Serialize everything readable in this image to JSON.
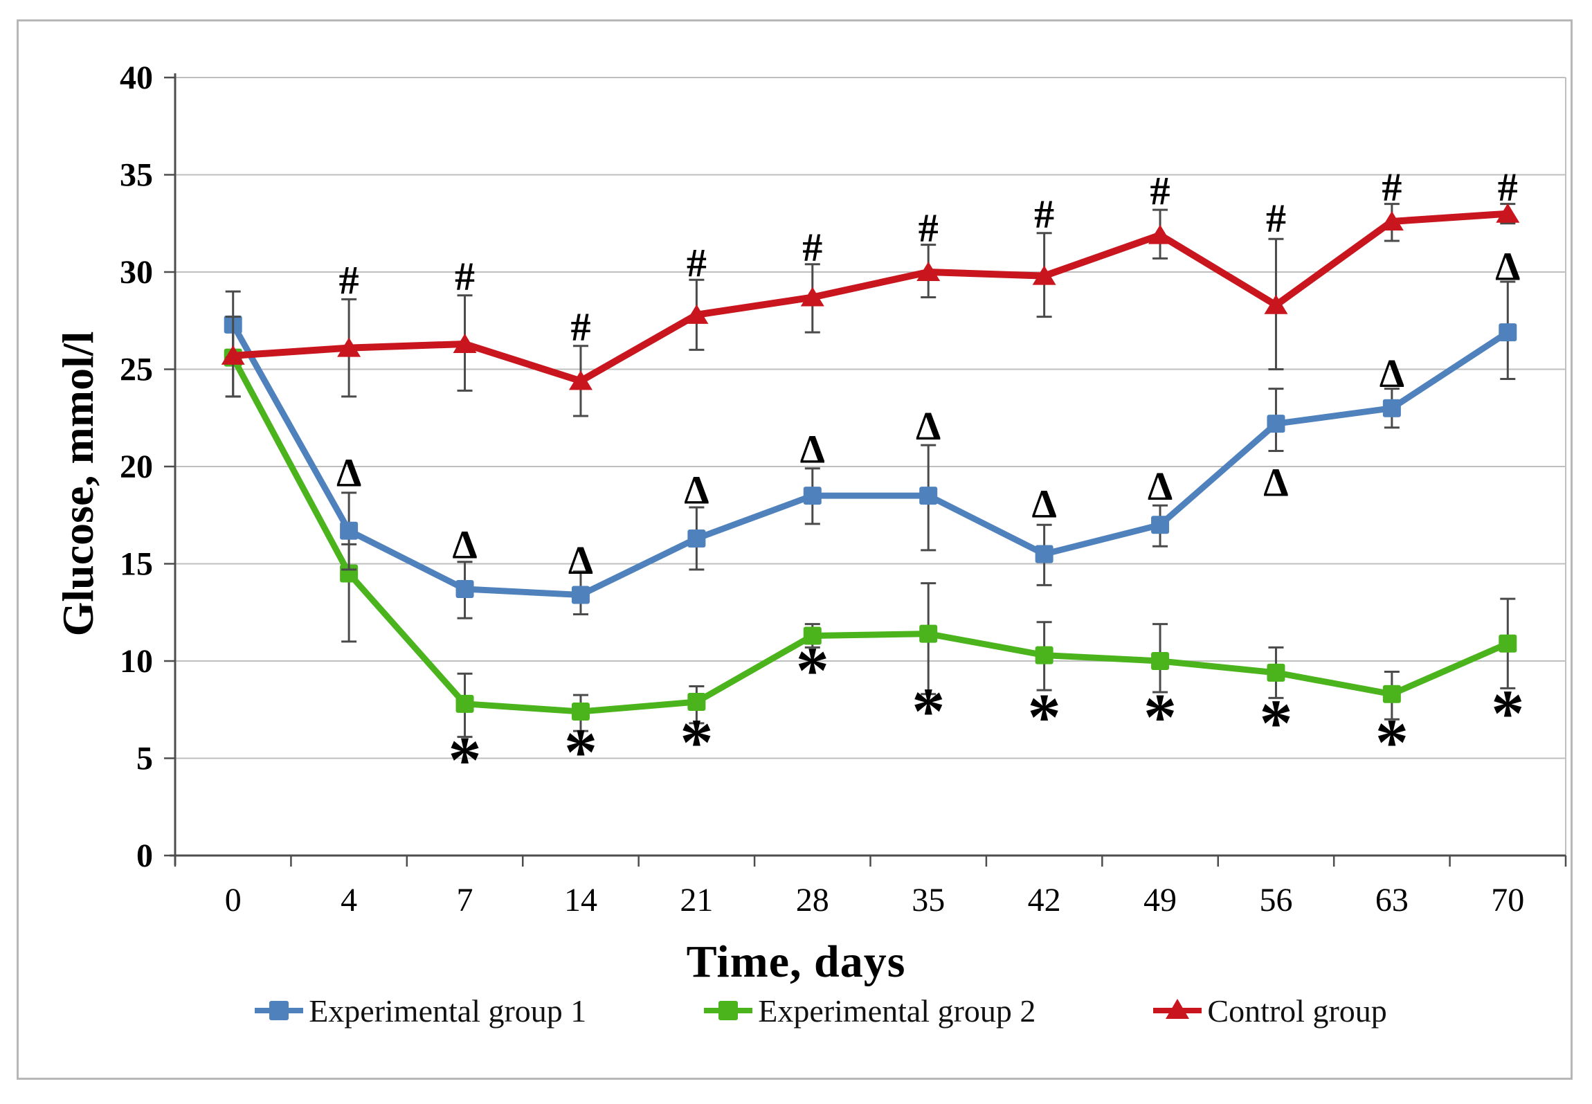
{
  "figure": {
    "background": "#ffffff",
    "border_color": "#b7b7b7",
    "grid_color": "#bfbfbf",
    "axis_color": "#4d4d4d",
    "error_bar_color": "#4a4a4a",
    "annotation_color": "#000000"
  },
  "chart_data": {
    "type": "line",
    "title": "",
    "xlabel": "Time, days",
    "ylabel": "Glucose, mmol/l",
    "categories": [
      "0",
      "4",
      "7",
      "14",
      "21",
      "28",
      "35",
      "42",
      "49",
      "56",
      "63",
      "70"
    ],
    "yticks": [
      "0",
      "5",
      "10",
      "15",
      "20",
      "25",
      "30",
      "35",
      "40"
    ],
    "ylim": [
      0,
      40
    ],
    "grid": "horizontal",
    "legend_position": "bottom",
    "series": [
      {
        "name": "Experimental group 1",
        "color": "#4F81BD",
        "marker": "square",
        "values": [
          27.3,
          16.7,
          13.7,
          13.4,
          16.3,
          18.5,
          18.5,
          15.5,
          17.0,
          22.2,
          23.0,
          26.9
        ],
        "err_up": [
          1.7,
          1.95,
          1.4,
          1.2,
          1.6,
          1.4,
          2.6,
          1.5,
          1.0,
          1.8,
          1.0,
          2.6
        ],
        "err_dn": [
          1.7,
          2.0,
          1.5,
          1.0,
          1.6,
          1.45,
          2.8,
          1.6,
          1.1,
          1.4,
          1.0,
          2.4
        ],
        "sig_symbol": "Δ",
        "sig_markers": [
          {
            "day": "4",
            "y": 19.7
          },
          {
            "day": "7",
            "y": 16.0
          },
          {
            "day": "14",
            "y": 15.2
          },
          {
            "day": "21",
            "y": 18.8
          },
          {
            "day": "28",
            "y": 20.9
          },
          {
            "day": "35",
            "y": 22.1
          },
          {
            "day": "42",
            "y": 18.1
          },
          {
            "day": "49",
            "y": 19.0
          },
          {
            "day": "56",
            "y": 19.2
          },
          {
            "day": "63",
            "y": 24.8
          },
          {
            "day": "70",
            "y": 30.3
          }
        ]
      },
      {
        "name": "Experimental group 2",
        "color": "#4BB41C",
        "marker": "square",
        "values": [
          25.6,
          14.5,
          7.8,
          7.4,
          7.9,
          11.3,
          11.4,
          10.3,
          10.0,
          9.4,
          8.3,
          10.9
        ],
        "err_up": [
          2.0,
          1.5,
          1.55,
          0.85,
          0.8,
          0.6,
          2.6,
          1.7,
          1.9,
          1.3,
          1.15,
          2.3
        ],
        "err_dn": [
          2.0,
          3.5,
          1.7,
          1.0,
          1.1,
          0.6,
          3.1,
          1.8,
          1.6,
          1.3,
          1.3,
          2.3
        ],
        "sig_symbol": "*",
        "sig_markers": [
          {
            "day": "7",
            "y": 4.9
          },
          {
            "day": "14",
            "y": 5.3
          },
          {
            "day": "21",
            "y": 5.8
          },
          {
            "day": "28",
            "y": 9.5
          },
          {
            "day": "35",
            "y": 7.4
          },
          {
            "day": "42",
            "y": 7.1
          },
          {
            "day": "49",
            "y": 7.1
          },
          {
            "day": "56",
            "y": 6.8
          },
          {
            "day": "63",
            "y": 5.8
          },
          {
            "day": "70",
            "y": 7.3
          }
        ]
      },
      {
        "name": "Control group",
        "color": "#C9151D",
        "marker": "triangle",
        "values": [
          25.7,
          26.1,
          26.3,
          24.4,
          27.8,
          28.7,
          30.0,
          29.8,
          31.9,
          28.3,
          32.6,
          33.0
        ],
        "err_up": [
          2.0,
          2.5,
          2.5,
          1.8,
          1.8,
          1.7,
          1.4,
          2.2,
          1.3,
          3.4,
          0.9,
          0.5
        ],
        "err_dn": [
          2.1,
          2.5,
          2.4,
          1.8,
          1.8,
          1.8,
          1.3,
          2.1,
          1.2,
          3.3,
          1.0,
          0.5
        ],
        "sig_symbol": "#",
        "sig_markers": [
          {
            "day": "4",
            "y": 29.6
          },
          {
            "day": "7",
            "y": 29.8
          },
          {
            "day": "14",
            "y": 27.2
          },
          {
            "day": "21",
            "y": 30.5
          },
          {
            "day": "28",
            "y": 31.3
          },
          {
            "day": "35",
            "y": 32.3
          },
          {
            "day": "42",
            "y": 33.0
          },
          {
            "day": "49",
            "y": 34.2
          },
          {
            "day": "56",
            "y": 32.8
          },
          {
            "day": "63",
            "y": 34.4
          },
          {
            "day": "70",
            "y": 34.4
          }
        ]
      }
    ]
  }
}
